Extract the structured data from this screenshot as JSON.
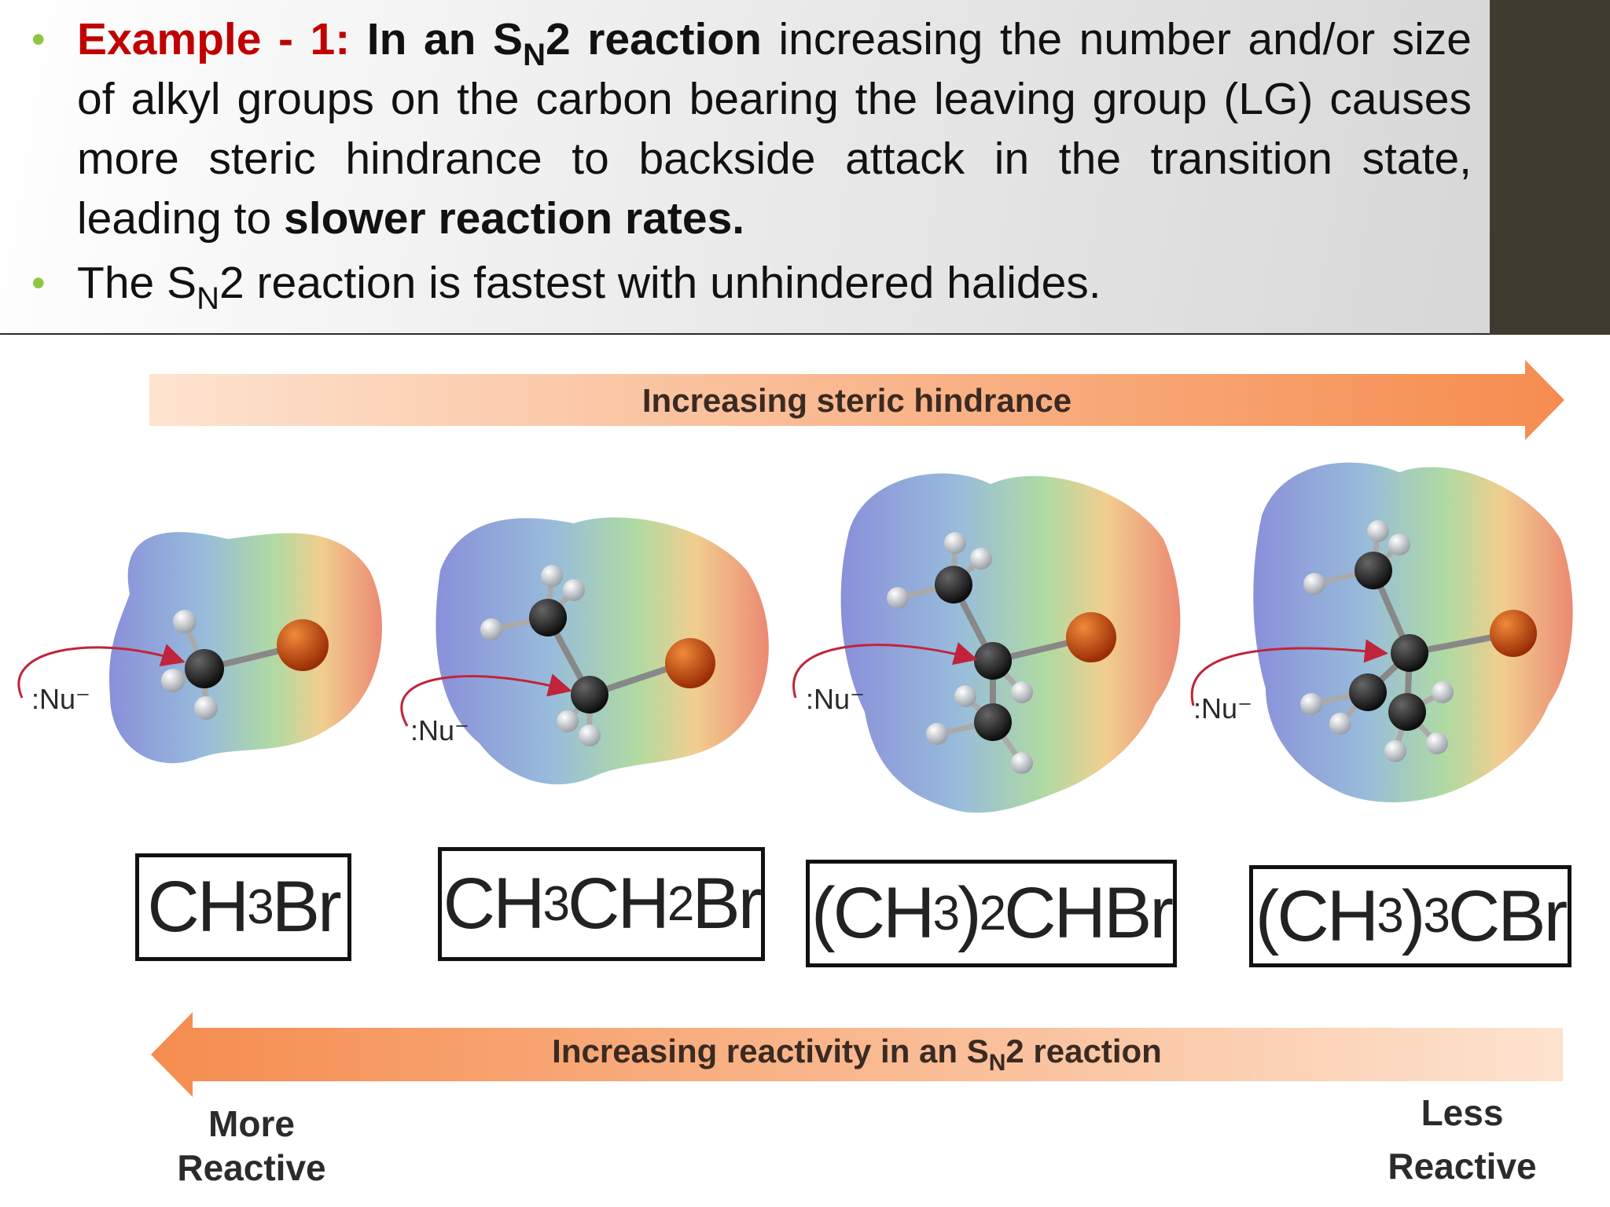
{
  "bullets": {
    "b1_prefix": "Example - 1:",
    "b1_bold_a": "In an S",
    "b1_bold_sub": "N",
    "b1_bold_b": "2 reaction",
    "b1_text": " increasing the number and/or size of alkyl groups on the carbon bearing the leaving group (LG) causes more steric hindrance to backside attack in the transition state, leading to ",
    "b1_bold_end": "slower reaction rates.",
    "b2_a": "The S",
    "b2_sub": "N",
    "b2_b": "2 reaction is fastest with unhindered halides."
  },
  "figure": {
    "top_arrow_label": "Increasing steric hindrance",
    "bottom_arrow_label_a": "Increasing reactivity in an S",
    "bottom_arrow_label_sub": "N",
    "bottom_arrow_label_b": "2 reaction",
    "more_line1": "More",
    "more_line2": "Reactive",
    "less_line1": "Less",
    "less_line2": "Reactive",
    "nucleophile": ":Nu⁻",
    "formulas": [
      {
        "p1": "CH",
        "s1": "3",
        "p2": "Br",
        "s2": "",
        "p3": "",
        "s3": "",
        "p4": ""
      },
      {
        "p1": "CH",
        "s1": "3",
        "p2": "CH",
        "s2": "2",
        "p3": "Br",
        "s3": "",
        "p4": ""
      },
      {
        "p1": "(CH",
        "s1": "3",
        "p2": ")",
        "s2": "2",
        "p3": "CHBr",
        "s3": "",
        "p4": ""
      },
      {
        "p1": "(CH",
        "s1": "3",
        "p2": ")",
        "s2": "3",
        "p3": "CBr",
        "s3": "",
        "p4": ""
      }
    ],
    "colors": {
      "arrow_light": "#fde3cf",
      "arrow_dark": "#f58c4e",
      "bromine": "#c2410c",
      "carbon": "#1a1a1a",
      "hydrogen": "#d4d7dc",
      "bullet": "#8dc63f",
      "accent_red": "#c00000"
    }
  }
}
